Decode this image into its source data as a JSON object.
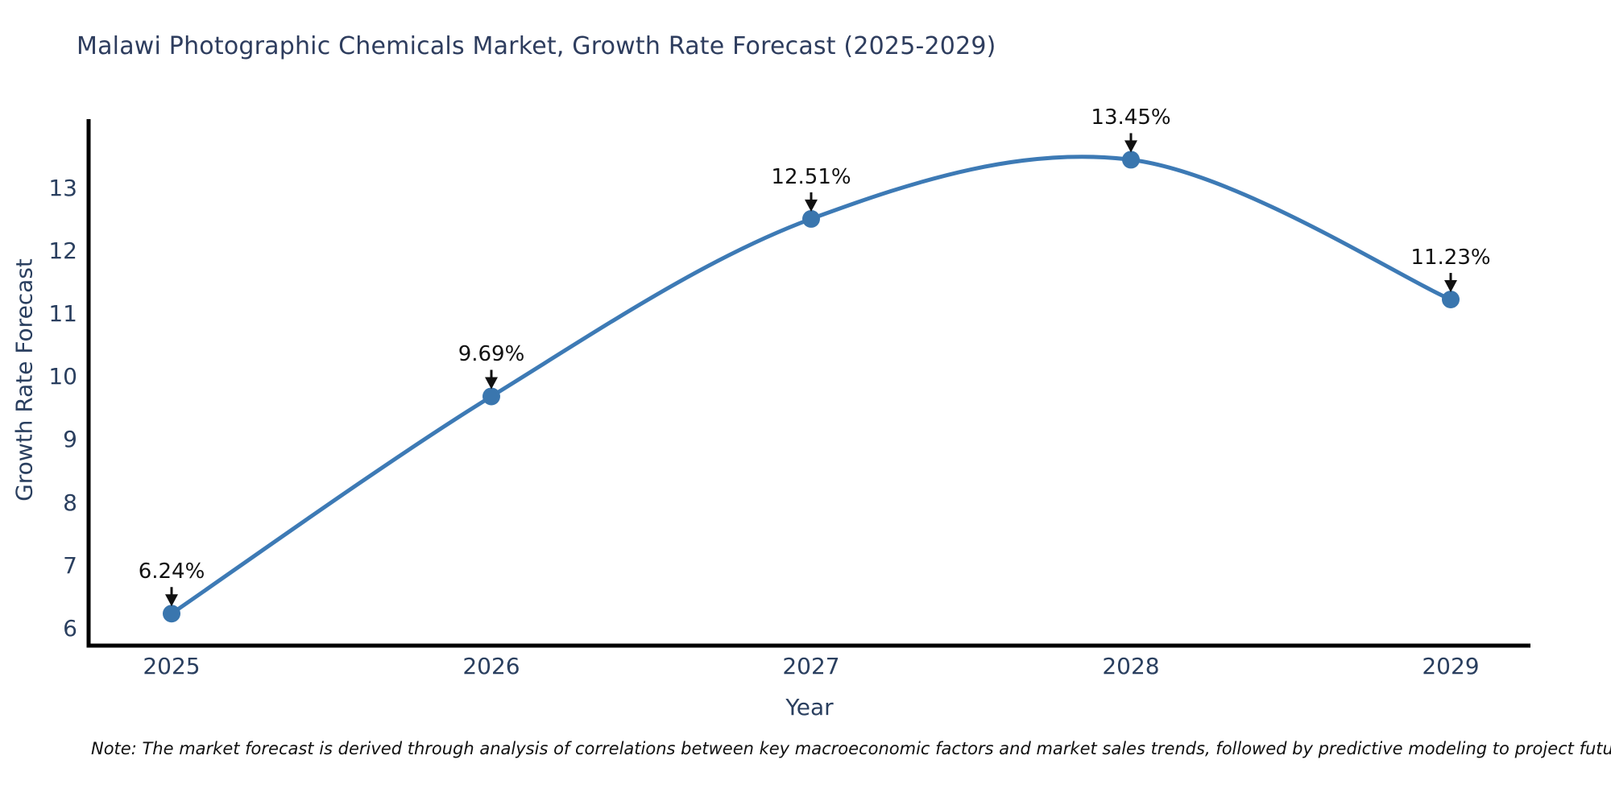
{
  "chart_data": {
    "type": "line",
    "title": "Malawi Photographic Chemicals Market, Growth Rate Forecast (2025-2029)",
    "xlabel": "Year",
    "ylabel": "Growth Rate Forecast",
    "x": [
      2025,
      2026,
      2027,
      2028,
      2029
    ],
    "values": [
      6.24,
      9.69,
      12.51,
      13.45,
      11.23
    ],
    "point_labels": [
      "6.24%",
      "9.69%",
      "12.51%",
      "13.45%",
      "11.23%"
    ],
    "y_ticks": [
      6,
      7,
      8,
      9,
      10,
      11,
      12,
      13
    ],
    "ylim": [
      5.8,
      14.1
    ],
    "line_shape": "spline",
    "grid": false,
    "legend": "none",
    "line_color": "#3d7ab5",
    "marker_color": "#3a76ae",
    "axis_color": "#000000",
    "tick_label_color": "#2a3f5f",
    "annotation_color": "#111111",
    "title_color": "#2e3d5e",
    "note": "Note: The market forecast is derived through analysis of correlations between key macroeconomic factors and market sales trends, followed by predictive modeling to project future sales"
  }
}
